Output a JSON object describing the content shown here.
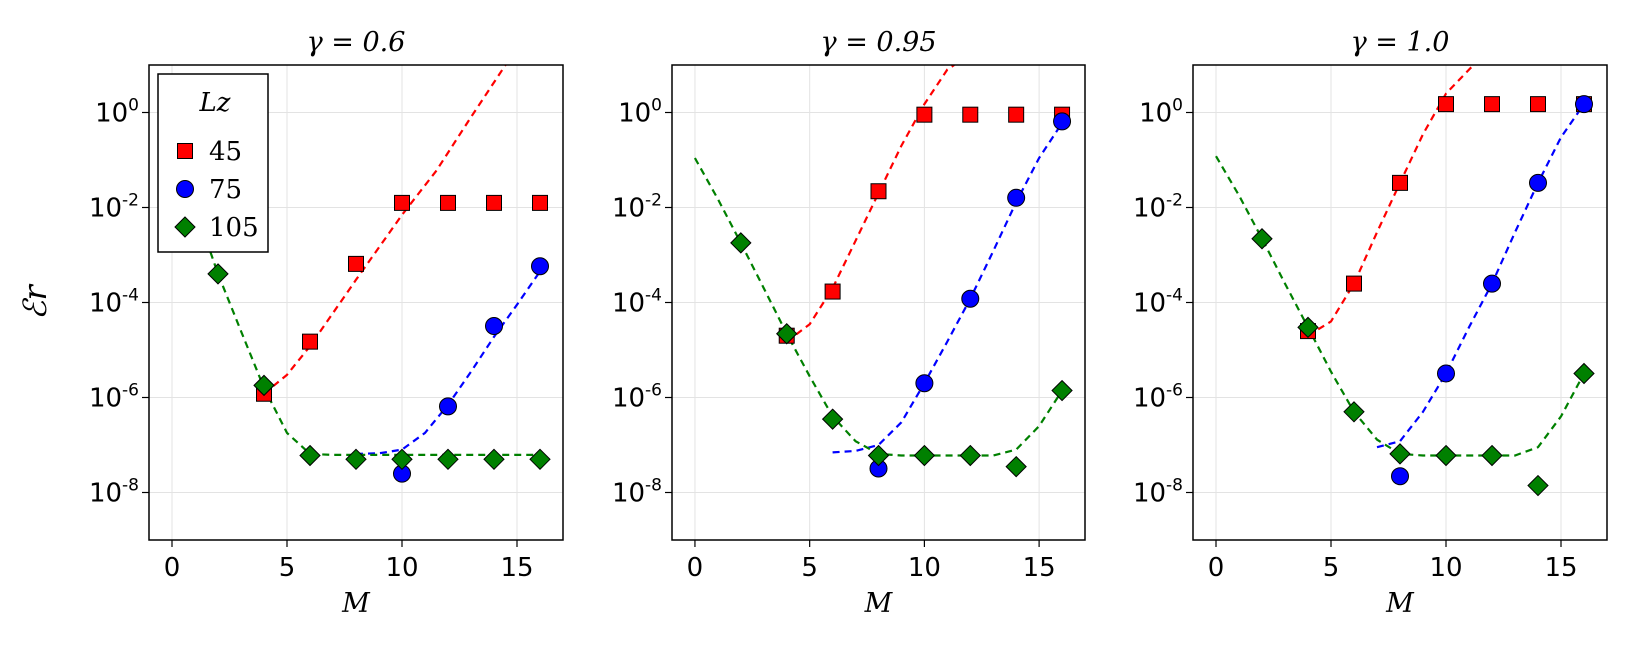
{
  "chart_data": [
    {
      "type": "scatter",
      "title": "γ = 0.6",
      "xlabel": "M",
      "ylabel": "ℰr",
      "xlim": [
        -1,
        17
      ],
      "ylim_log10": [
        -9,
        1
      ],
      "yscale": "log",
      "xticks": [
        0,
        5,
        10,
        15
      ],
      "yticks": [
        {
          "exp": "0",
          "value": 1
        },
        {
          "exp": "-2",
          "value": 0.01
        },
        {
          "exp": "-4",
          "value": 0.0001
        },
        {
          "exp": "-6",
          "value": 1e-06
        },
        {
          "exp": "-8",
          "value": 1e-08
        }
      ],
      "ytick_base": "10",
      "grid": true,
      "legend": {
        "title": "Lz",
        "placement": "top-left"
      },
      "series": [
        {
          "name": "45",
          "marker": "square",
          "color": "#ff0000",
          "x": [
            4,
            6,
            8,
            10,
            12,
            14,
            16
          ],
          "y": [
            1.2e-06,
            1.5e-05,
            0.00065,
            0.0125,
            0.0125,
            0.0125,
            0.0125
          ]
        },
        {
          "name": "75",
          "marker": "circle",
          "color": "#0000ff",
          "x": [
            10,
            12,
            14,
            16
          ],
          "y": [
            2.5e-08,
            6.5e-07,
            3.2e-05,
            0.00058
          ]
        },
        {
          "name": "105",
          "marker": "diamond",
          "color": "#008000",
          "x": [
            2,
            4,
            6,
            8,
            10,
            12,
            14,
            16
          ],
          "y": [
            0.0004,
            1.8e-06,
            6e-08,
            5e-08,
            5e-08,
            5e-08,
            5e-08,
            5e-08
          ]
        }
      ],
      "fit_lines": [
        {
          "color": "#ff0000",
          "x": [
            4,
            5,
            6,
            8,
            10,
            11.5,
            13,
            14.5
          ],
          "y": [
            1.2e-06,
            3e-06,
            1.2e-05,
            0.0003,
            0.007,
            0.06,
            0.8,
            10
          ]
        },
        {
          "color": "#0000ff",
          "x": [
            8,
            9,
            10,
            11,
            12,
            13,
            14,
            15,
            16
          ],
          "y": [
            6.5e-08,
            6.7e-08,
            8e-08,
            1.8e-07,
            7e-07,
            3.5e-06,
            1.9e-05,
            9e-05,
            0.00045
          ]
        },
        {
          "color": "#008000",
          "x": [
            1.5,
            2,
            3,
            4,
            5,
            6,
            7,
            16
          ],
          "y": [
            0.002,
            0.0004,
            2.5e-05,
            1.6e-06,
            1.8e-07,
            6.5e-08,
            6.2e-08,
            6.2e-08
          ]
        }
      ]
    },
    {
      "type": "scatter",
      "title": "γ = 0.95",
      "xlabel": "M",
      "ylabel": "",
      "xlim": [
        -1,
        17
      ],
      "ylim_log10": [
        -9,
        1
      ],
      "yscale": "log",
      "xticks": [
        0,
        5,
        10,
        15
      ],
      "yticks": [
        {
          "exp": "0",
          "value": 1
        },
        {
          "exp": "-2",
          "value": 0.01
        },
        {
          "exp": "-4",
          "value": 0.0001
        },
        {
          "exp": "-6",
          "value": 1e-06
        },
        {
          "exp": "-8",
          "value": 1e-08
        }
      ],
      "ytick_base": "10",
      "grid": true,
      "series": [
        {
          "name": "45",
          "marker": "square",
          "color": "#ff0000",
          "x": [
            4,
            6,
            8,
            10,
            12,
            14,
            16
          ],
          "y": [
            2e-05,
            0.00017,
            0.022,
            0.9,
            0.9,
            0.9,
            0.9
          ]
        },
        {
          "name": "75",
          "marker": "circle",
          "color": "#0000ff",
          "x": [
            8,
            10,
            12,
            14,
            16
          ],
          "y": [
            3.2e-08,
            2e-06,
            0.00012,
            0.016,
            0.65
          ]
        },
        {
          "name": "105",
          "marker": "diamond",
          "color": "#008000",
          "x": [
            2,
            4,
            6,
            8,
            10,
            12,
            14,
            16
          ],
          "y": [
            0.0018,
            2.2e-05,
            3.5e-07,
            6e-08,
            6e-08,
            6e-08,
            3.5e-08,
            1.4e-06
          ]
        }
      ],
      "fit_lines": [
        {
          "color": "#ff0000",
          "x": [
            4,
            5,
            6,
            7,
            8,
            9,
            10,
            11,
            11.3
          ],
          "y": [
            1.5e-05,
            3.5e-05,
            0.0002,
            0.002,
            0.02,
            0.2,
            1.5,
            8,
            10
          ]
        },
        {
          "color": "#0000ff",
          "x": [
            6,
            7,
            8,
            9,
            10,
            11,
            12,
            13,
            14,
            15,
            16
          ],
          "y": [
            7e-08,
            7.5e-08,
            1e-07,
            3e-07,
            2e-06,
            1.5e-05,
            0.00012,
            0.0012,
            0.013,
            0.11,
            0.6
          ]
        },
        {
          "color": "#008000",
          "x": [
            0,
            1,
            2,
            3,
            4,
            5,
            6,
            7,
            8,
            9,
            13,
            14,
            15,
            16
          ],
          "y": [
            0.11,
            0.015,
            0.0018,
            0.0002,
            2.2e-05,
            2.8e-06,
            4e-07,
            1.2e-07,
            6.5e-08,
            6e-08,
            6e-08,
            8e-08,
            2.5e-07,
            1.4e-06
          ]
        }
      ]
    },
    {
      "type": "scatter",
      "title": "γ = 1.0",
      "xlabel": "M",
      "ylabel": "",
      "xlim": [
        -1,
        17
      ],
      "ylim_log10": [
        -9,
        1
      ],
      "yscale": "log",
      "xticks": [
        0,
        5,
        10,
        15
      ],
      "yticks": [
        {
          "exp": "0",
          "value": 1
        },
        {
          "exp": "-2",
          "value": 0.01
        },
        {
          "exp": "-4",
          "value": 0.0001
        },
        {
          "exp": "-6",
          "value": 1e-06
        },
        {
          "exp": "-8",
          "value": 1e-08
        }
      ],
      "ytick_base": "10",
      "grid": true,
      "series": [
        {
          "name": "45",
          "marker": "square",
          "color": "#ff0000",
          "x": [
            4,
            6,
            8,
            10,
            12,
            14,
            16
          ],
          "y": [
            2.5e-05,
            0.00025,
            0.033,
            1.5,
            1.5,
            1.5,
            1.5
          ]
        },
        {
          "name": "75",
          "marker": "circle",
          "color": "#0000ff",
          "x": [
            8,
            10,
            12,
            14,
            16
          ],
          "y": [
            2.2e-08,
            3.2e-06,
            0.00025,
            0.033,
            1.5
          ]
        },
        {
          "name": "105",
          "marker": "diamond",
          "color": "#008000",
          "x": [
            2,
            4,
            6,
            8,
            10,
            12,
            14,
            16
          ],
          "y": [
            0.0022,
            3e-05,
            5e-07,
            6.5e-08,
            6e-08,
            6e-08,
            1.4e-08,
            3.2e-06
          ]
        }
      ],
      "fit_lines": [
        {
          "color": "#ff0000",
          "x": [
            4,
            5,
            6,
            7,
            8,
            9,
            10,
            11,
            11.2
          ],
          "y": [
            2e-05,
            4e-05,
            0.00025,
            0.003,
            0.033,
            0.35,
            2.5,
            8,
            10
          ]
        },
        {
          "color": "#0000ff",
          "x": [
            7,
            8,
            9,
            10,
            11,
            12,
            13,
            14,
            15,
            16
          ],
          "y": [
            9e-08,
            1.2e-07,
            5e-07,
            3.2e-06,
            3e-05,
            0.00025,
            0.003,
            0.033,
            0.3,
            1.5
          ]
        },
        {
          "color": "#008000",
          "x": [
            0,
            1,
            2,
            3,
            4,
            5,
            6,
            7,
            8,
            9,
            13,
            14,
            15,
            16
          ],
          "y": [
            0.12,
            0.018,
            0.0022,
            0.00025,
            3e-05,
            3.5e-06,
            5e-07,
            1.3e-07,
            6.5e-08,
            6e-08,
            6e-08,
            9e-08,
            4e-07,
            3.2e-06
          ]
        }
      ]
    }
  ]
}
